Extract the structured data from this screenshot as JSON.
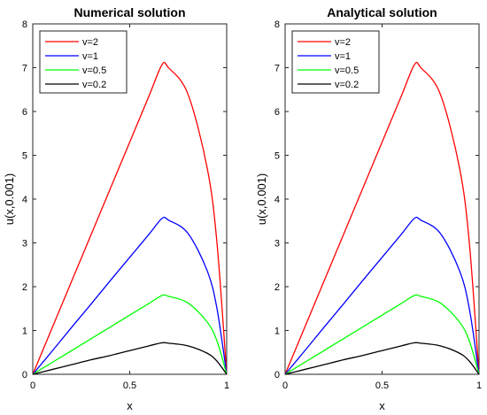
{
  "chart_data": [
    {
      "type": "line",
      "title": "Numerical solution",
      "xlabel": "x",
      "ylabel": "u(x,0.001)",
      "xlim": [
        0,
        1
      ],
      "ylim": [
        0,
        8
      ],
      "xticks": [
        "0",
        "0.5",
        "1"
      ],
      "yticks": [
        "0",
        "1",
        "2",
        "3",
        "4",
        "5",
        "6",
        "7",
        "8"
      ],
      "grid": false,
      "legend_position": "top-left",
      "x": [
        0,
        0.1,
        0.2,
        0.3,
        0.4,
        0.5,
        0.6,
        0.667,
        0.7,
        0.8,
        0.9,
        0.95,
        1
      ],
      "series": [
        {
          "name": "v=2",
          "color": "#ff0000",
          "values": [
            0,
            1.06,
            2.12,
            3.18,
            4.24,
            5.3,
            6.36,
            7.07,
            7.0,
            6.4,
            4.7,
            3.0,
            0
          ]
        },
        {
          "name": "v=1",
          "color": "#0000ff",
          "values": [
            0,
            0.53,
            1.07,
            1.6,
            2.14,
            2.67,
            3.2,
            3.56,
            3.52,
            3.22,
            2.36,
            1.5,
            0
          ]
        },
        {
          "name": "v=0.5",
          "color": "#00ff00",
          "values": [
            0,
            0.27,
            0.54,
            0.81,
            1.08,
            1.35,
            1.62,
            1.8,
            1.78,
            1.63,
            1.19,
            0.76,
            0
          ]
        },
        {
          "name": "v=0.2",
          "color": "#000000",
          "values": [
            0,
            0.11,
            0.22,
            0.33,
            0.43,
            0.54,
            0.65,
            0.72,
            0.71,
            0.65,
            0.48,
            0.3,
            0
          ]
        }
      ]
    },
    {
      "type": "line",
      "title": "Analytical solution",
      "xlabel": "x",
      "ylabel": "u(x,0.001)",
      "xlim": [
        0,
        1
      ],
      "ylim": [
        0,
        8
      ],
      "xticks": [
        "0",
        "0.5",
        "1"
      ],
      "yticks": [
        "0",
        "1",
        "2",
        "3",
        "4",
        "5",
        "6",
        "7",
        "8"
      ],
      "grid": false,
      "legend_position": "top-left",
      "x": [
        0,
        0.1,
        0.2,
        0.3,
        0.4,
        0.5,
        0.6,
        0.667,
        0.7,
        0.8,
        0.9,
        0.95,
        1
      ],
      "series": [
        {
          "name": "v=2",
          "color": "#ff0000",
          "values": [
            0,
            1.06,
            2.12,
            3.18,
            4.24,
            5.3,
            6.36,
            7.07,
            7.0,
            6.4,
            4.7,
            3.0,
            0
          ]
        },
        {
          "name": "v=1",
          "color": "#0000ff",
          "values": [
            0,
            0.53,
            1.07,
            1.6,
            2.14,
            2.67,
            3.2,
            3.56,
            3.52,
            3.22,
            2.36,
            1.5,
            0
          ]
        },
        {
          "name": "v=0.5",
          "color": "#00ff00",
          "values": [
            0,
            0.27,
            0.54,
            0.81,
            1.08,
            1.35,
            1.62,
            1.8,
            1.78,
            1.63,
            1.19,
            0.76,
            0
          ]
        },
        {
          "name": "v=0.2",
          "color": "#000000",
          "values": [
            0,
            0.11,
            0.22,
            0.33,
            0.43,
            0.54,
            0.65,
            0.72,
            0.71,
            0.65,
            0.48,
            0.3,
            0
          ]
        }
      ]
    }
  ]
}
